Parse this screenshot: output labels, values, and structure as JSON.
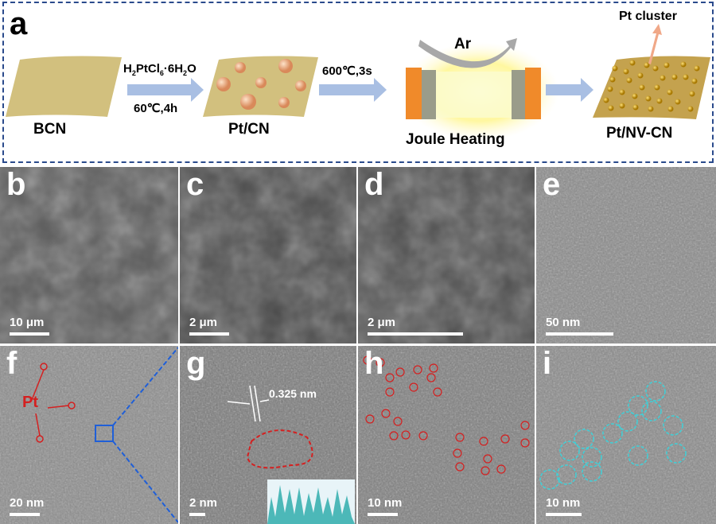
{
  "panel_a": {
    "label": "a",
    "bcn": "BCN",
    "reagent": "H2PtCl6·6H2O",
    "reagent_parts": [
      "H",
      "2",
      "PtCl",
      "6",
      "·6H",
      "2",
      "O"
    ],
    "cond1": "60℃,4h",
    "ptcn": "Pt/CN",
    "cond2": "600℃,3s",
    "gas": "Ar",
    "joule": "Joule Heating",
    "cluster": "Pt cluster",
    "product": "Pt/NV-CN"
  },
  "panels": [
    {
      "label": "b",
      "scale": "10 μm",
      "tone": "#5a5a5a"
    },
    {
      "label": "c",
      "scale": "2 μm",
      "tone": "#4a4a4a"
    },
    {
      "label": "d",
      "scale": "2 μm",
      "tone": "#4e4e4e"
    },
    {
      "label": "e",
      "scale": "50 nm",
      "tone": "#8a8a8a"
    },
    {
      "label": "f",
      "scale": "20 nm",
      "tone": "#8c8c8c",
      "annotation": "Pt"
    },
    {
      "label": "g",
      "scale": "2 nm",
      "tone": "#7a7a7a",
      "annotation": "0.325 nm"
    },
    {
      "label": "h",
      "scale": "10 nm",
      "tone": "#7e7e7e"
    },
    {
      "label": "i",
      "scale": "10 nm",
      "tone": "#8a8a8a"
    }
  ],
  "colors": {
    "frame": "#2a4a8c",
    "sheet": "#d2c07e",
    "arrow": "#a9bfe3",
    "electrode": "#f08a2a",
    "pt_marker": "#d42020",
    "cluster_marker": "#3fd0d8",
    "zoom_line": "#1f5fd8"
  }
}
